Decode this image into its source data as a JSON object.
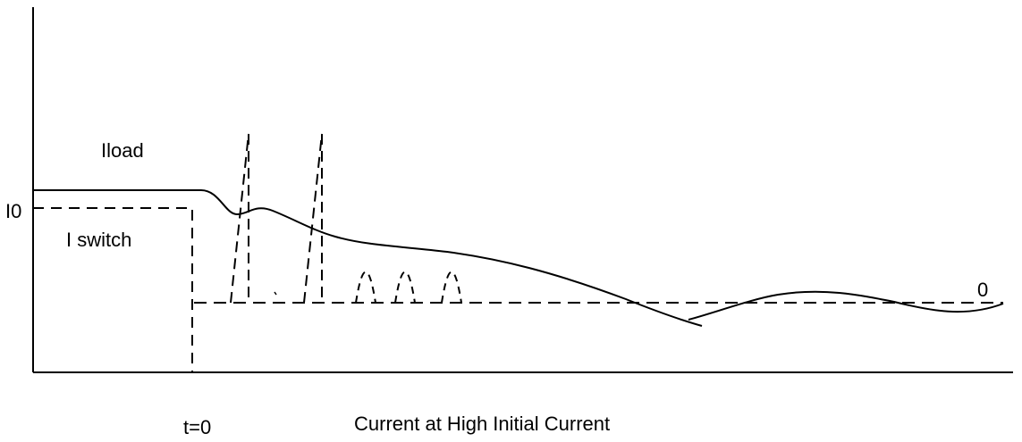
{
  "labels": {
    "iload": "Iload",
    "i0": "I0",
    "iswitch": "I switch",
    "zero": "0",
    "t0": "t=0",
    "caption": "Current at High Initial Current"
  },
  "colors": {
    "ink": "#000000",
    "background": "#ffffff"
  },
  "line_styles": {
    "load_current": "solid",
    "switch_current": "dashed",
    "zero_level": "dashed"
  }
}
